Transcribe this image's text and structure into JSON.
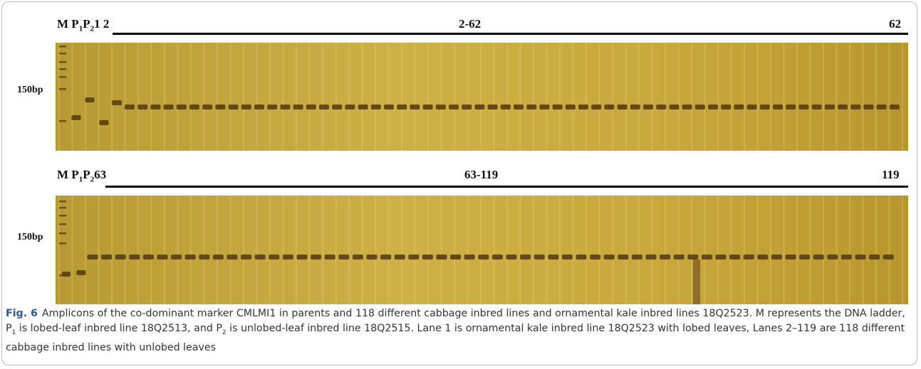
{
  "panels": [
    {
      "lane_labels": [
        "M",
        "P",
        "1",
        "P",
        "2",
        "1",
        "2"
      ],
      "range": "2-62",
      "end": "62",
      "marker": "150bp"
    },
    {
      "lane_labels": [
        "M",
        "P",
        "1",
        "P",
        "2",
        "63"
      ],
      "range": "63-119",
      "end": "119",
      "marker": "150bp"
    }
  ],
  "caption": {
    "label": "Fig. 6",
    "parts": [
      "Amplicons of the co-dominant marker CMLMI1 in parents and 118 different cabbage inbred lines and ornamental kale inbred lines 18Q2523. M represents the DNA ladder, P",
      "1",
      " is lobed-leaf inbred line 18Q2513, and P",
      "2",
      " is unlobed-leaf inbred line 18Q2515. Lane 1 is ornamental kale inbred line 18Q2523 with lobed leaves, Lanes 2–119 are 118 different cabbage inbred lines with unlobed leaves"
    ]
  }
}
